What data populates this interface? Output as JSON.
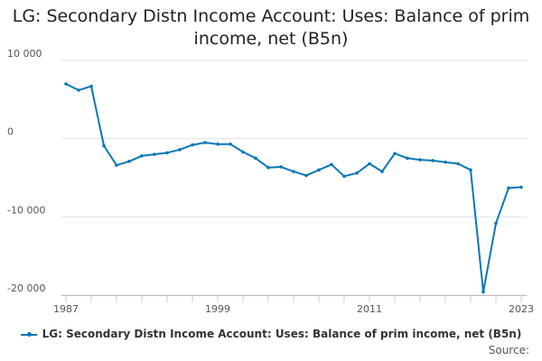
{
  "chart_data": {
    "type": "line",
    "title": "LG: Secondary Distn Income Account: Uses: Balance of prim income, net (B5n)",
    "x": [
      1987,
      1988,
      1989,
      1990,
      1991,
      1992,
      1993,
      1994,
      1995,
      1996,
      1997,
      1998,
      1999,
      2000,
      2001,
      2002,
      2003,
      2004,
      2005,
      2006,
      2007,
      2008,
      2009,
      2010,
      2011,
      2012,
      2013,
      2014,
      2015,
      2016,
      2017,
      2018,
      2019,
      2020,
      2021,
      2022,
      2023
    ],
    "series": [
      {
        "name": "LG: Secondary Distn Income Account: Uses: Balance of prim income, net (B5n)",
        "color": "#0b77b4",
        "values": [
          7000,
          6200,
          6700,
          -900,
          -3400,
          -2900,
          -2200,
          -2000,
          -1800,
          -1400,
          -800,
          -500,
          -700,
          -700,
          -1700,
          -2500,
          -3700,
          -3600,
          -4200,
          -4700,
          -4000,
          -3300,
          -4800,
          -4400,
          -3200,
          -4200,
          -1900,
          -2500,
          -2700,
          -2800,
          -3000,
          -3200,
          -4000,
          -19600,
          -10800,
          -6300,
          -6200
        ]
      }
    ],
    "xticks": [
      "1987",
      "1999",
      "2011",
      "2023"
    ],
    "yticks": [
      "10 000",
      "0",
      "-10 000",
      "-20 000"
    ],
    "ylim": [
      -20000,
      10000
    ],
    "xlim": [
      1987,
      2023
    ],
    "grid": true,
    "legend": "bottom"
  },
  "legend_label": "LG: Secondary Distn Income Account: Uses: Balance of prim income, net (B5n)",
  "source_label": "Source:"
}
